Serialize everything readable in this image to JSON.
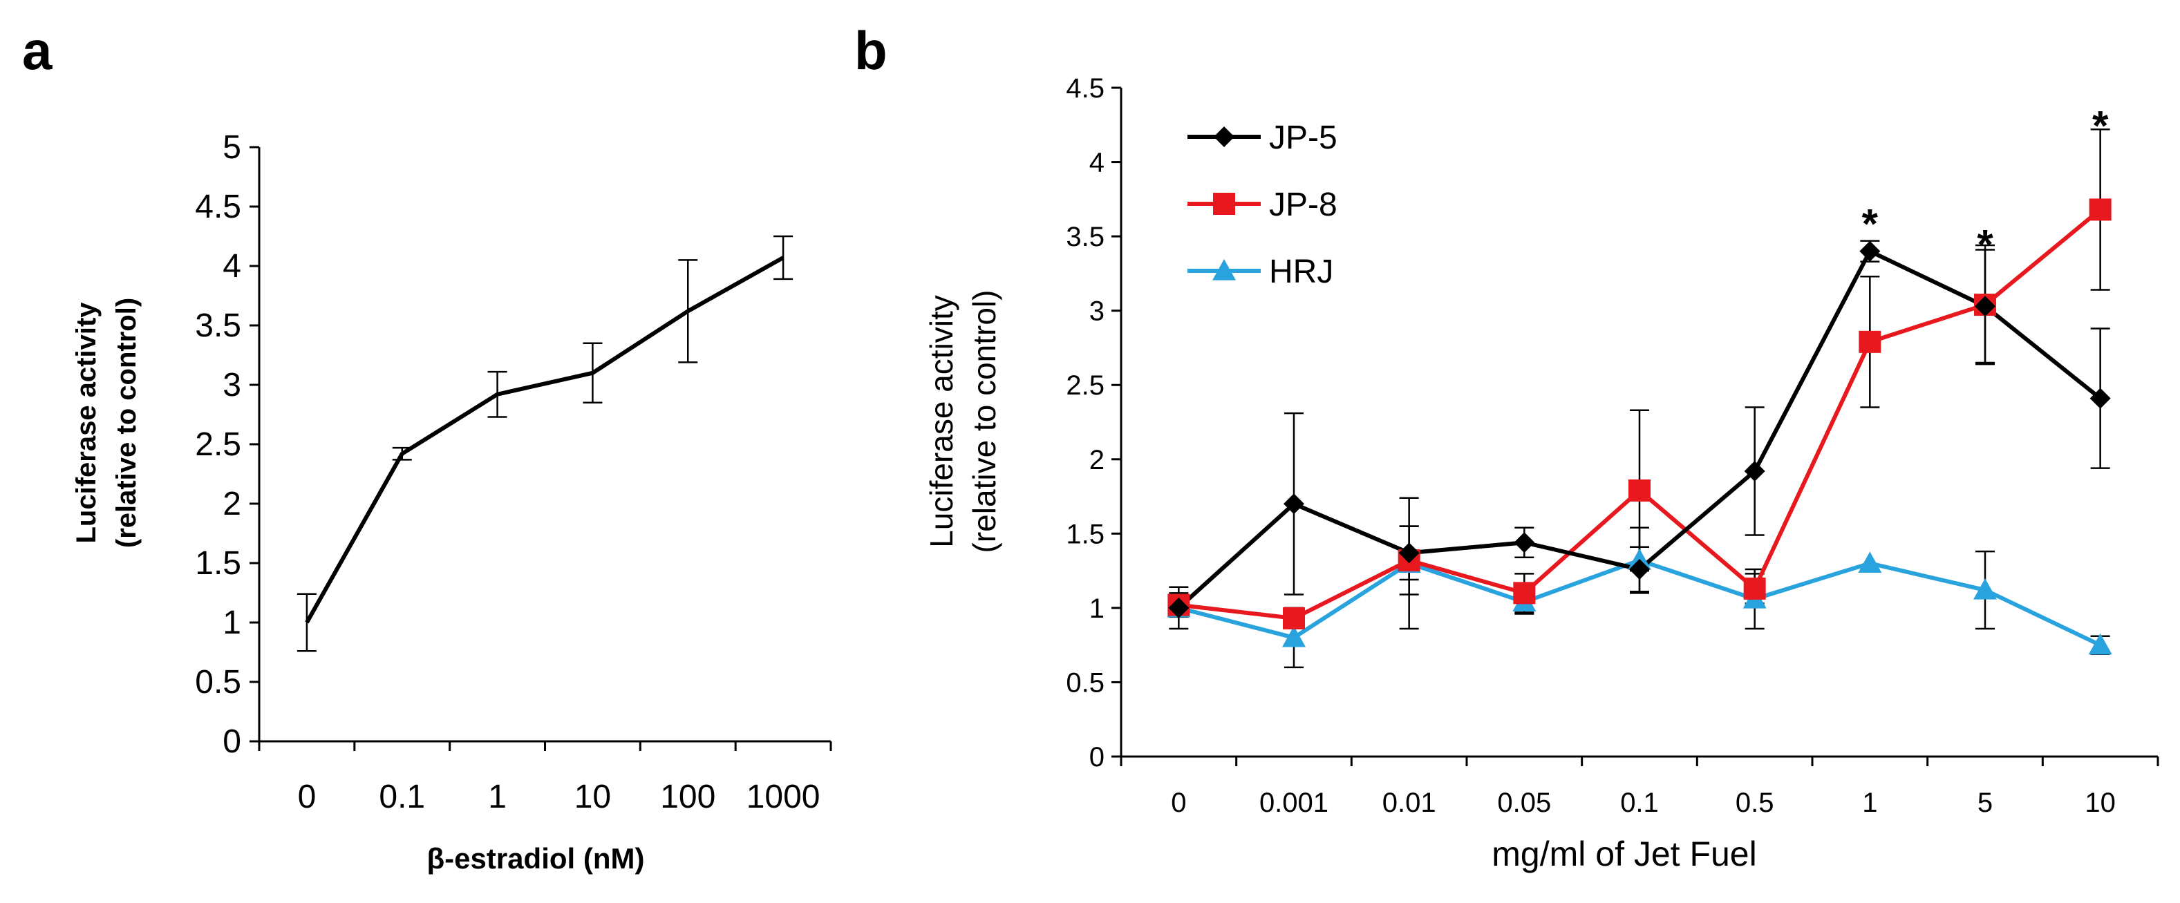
{
  "figure": {
    "panel_a_letter": "a",
    "panel_b_letter": "b"
  },
  "chart_data": [
    {
      "type": "line",
      "panel": "a",
      "title": "",
      "xlabel": "β-estradiol (nM)",
      "ylabel": [
        "Luciferase activity",
        "(relative to control)"
      ],
      "categories": [
        "0",
        "0.1",
        "1",
        "10",
        "100",
        "1000"
      ],
      "yticks": [
        "0",
        "0.5",
        "1",
        "1.5",
        "2",
        "2.5",
        "3",
        "3.5",
        "4",
        "4.5",
        "5"
      ],
      "ylim": [
        0,
        5
      ],
      "series": [
        {
          "name": "β-estradiol",
          "color": "#000000",
          "values": [
            1.0,
            2.42,
            2.92,
            3.1,
            3.62,
            4.07
          ],
          "errors": [
            0.24,
            0.05,
            0.19,
            0.25,
            0.43,
            0.18
          ]
        }
      ]
    },
    {
      "type": "line",
      "panel": "b",
      "title": "",
      "xlabel": "mg/ml of Jet Fuel",
      "ylabel": [
        "Luciferase activity",
        "(relative to control)"
      ],
      "categories": [
        "0",
        "0.001",
        "0.01",
        "0.05",
        "0.1",
        "0.5",
        "1",
        "5",
        "10"
      ],
      "yticks": [
        "0",
        "0.5",
        "1",
        "1.5",
        "2",
        "2.5",
        "3",
        "3.5",
        "4",
        "4.5"
      ],
      "ylim": [
        0,
        4.5
      ],
      "legend_position": "top-left",
      "series": [
        {
          "name": "JP-5",
          "color": "#000000",
          "marker": "diamond",
          "values": [
            1.0,
            1.7,
            1.37,
            1.44,
            1.26,
            1.92,
            3.4,
            3.03,
            2.41
          ],
          "errors": [
            0.14,
            0.61,
            0.18,
            0.1,
            0.15,
            0.43,
            0.07,
            0.38,
            0.47
          ]
        },
        {
          "name": "JP-8",
          "color": "#E8191E",
          "marker": "square",
          "values": [
            1.02,
            0.93,
            1.32,
            1.1,
            1.79,
            1.13,
            2.79,
            3.04,
            3.68
          ],
          "errors": [
            0.08,
            0.0,
            0.23,
            0.13,
            0.54,
            0.1,
            0.44,
            0.4,
            0.54
          ]
        },
        {
          "name": "HRJ",
          "color": "#29A3DD",
          "marker": "triangle",
          "values": [
            1.0,
            0.8,
            1.3,
            1.04,
            1.32,
            1.06,
            1.3,
            1.12,
            0.75
          ],
          "errors": [
            0.05,
            0.2,
            0.44,
            0.08,
            0.22,
            0.2,
            0.0,
            0.26,
            0.06
          ]
        }
      ],
      "annotations": [
        {
          "text": "*",
          "category": "1",
          "value": 3.62
        },
        {
          "text": "*",
          "category": "5",
          "value": 3.48
        },
        {
          "text": "*",
          "category": "10",
          "value": 4.28
        }
      ]
    }
  ]
}
